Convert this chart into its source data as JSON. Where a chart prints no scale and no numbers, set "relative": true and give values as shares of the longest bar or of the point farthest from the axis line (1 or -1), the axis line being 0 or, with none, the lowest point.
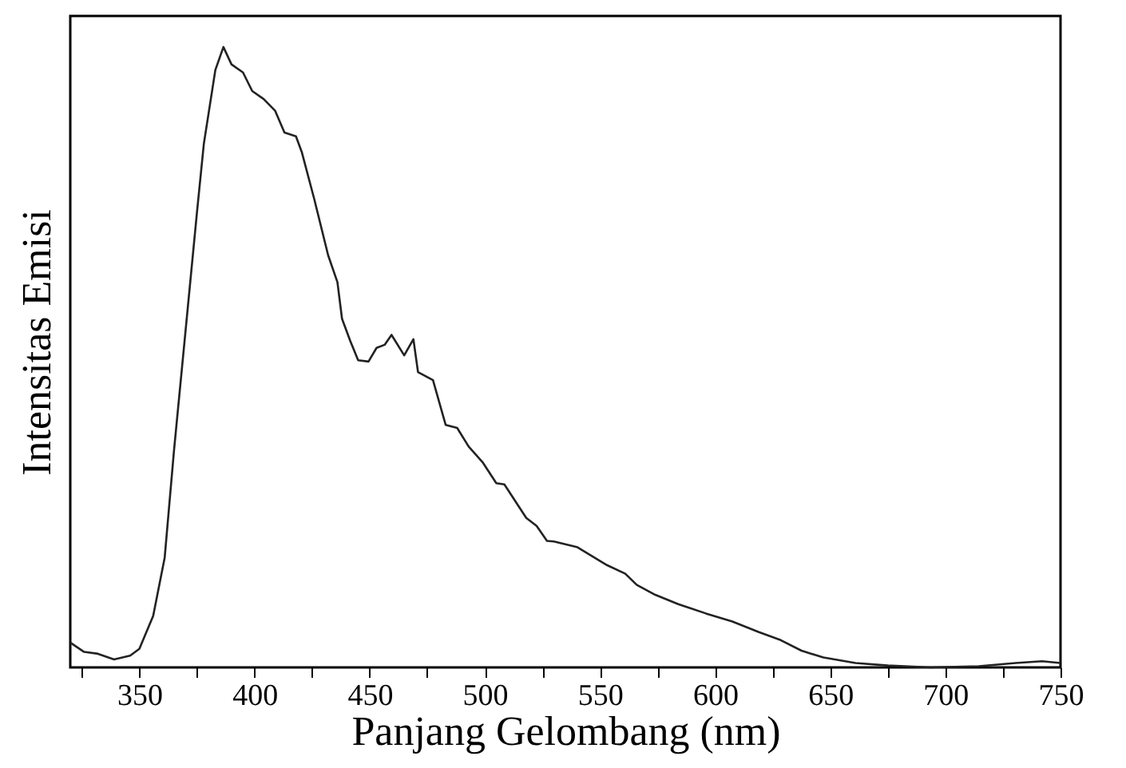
{
  "chart_data": {
    "type": "line",
    "relative": true,
    "xlabel": "Panjang Gelombang (nm)",
    "ylabel": "Intensitas Emisi",
    "xlim": [
      320,
      750
    ],
    "xticks": [
      {
        "value": 325,
        "label": null
      },
      350,
      {
        "value": 375,
        "label": null
      },
      400,
      {
        "value": 425,
        "label": null
      },
      450,
      {
        "value": 475,
        "label": null
      },
      500,
      {
        "value": 525,
        "label": null
      },
      550,
      {
        "value": 575,
        "label": null
      },
      600,
      {
        "value": 625,
        "label": null
      },
      650,
      {
        "value": 675,
        "label": null
      },
      700,
      {
        "value": 725,
        "label": null
      },
      750
    ],
    "grid": false,
    "marker": "none",
    "line_style": "solid",
    "series": [
      {
        "color": "#222222",
        "x": [
          320,
          326,
          332,
          339,
          346,
          350,
          356,
          361,
          365,
          371,
          375,
          378,
          383,
          386.5,
          390,
          395,
          399,
          404,
          409,
          413,
          418,
          420.5,
          426,
          432,
          436,
          438,
          441.5,
          445,
          449.5,
          453,
          456.5,
          459.5,
          465,
          469,
          471,
          477.5,
          483,
          488,
          493,
          499,
          505,
          508.5,
          518,
          522.5,
          527,
          530,
          540,
          553,
          561,
          566,
          574,
          584,
          596,
          607.5,
          619,
          628.5,
          637.5,
          647,
          661,
          675,
          693.5,
          714.5,
          730.5,
          742,
          750
        ],
        "values": [
          0.04,
          0.025,
          0.022,
          0.013,
          0.019,
          0.03,
          0.083,
          0.177,
          0.348,
          0.579,
          0.733,
          0.844,
          0.963,
          1.0,
          0.972,
          0.959,
          0.929,
          0.916,
          0.897,
          0.862,
          0.856,
          0.831,
          0.754,
          0.664,
          0.621,
          0.562,
          0.527,
          0.495,
          0.493,
          0.515,
          0.52,
          0.536,
          0.503,
          0.529,
          0.476,
          0.463,
          0.391,
          0.386,
          0.356,
          0.331,
          0.297,
          0.295,
          0.241,
          0.228,
          0.204,
          0.203,
          0.194,
          0.165,
          0.151,
          0.133,
          0.117,
          0.102,
          0.087,
          0.074,
          0.057,
          0.044,
          0.027,
          0.016,
          0.007,
          0.003,
          0.0,
          0.002,
          0.007,
          0.01,
          0.007
        ]
      }
    ]
  }
}
